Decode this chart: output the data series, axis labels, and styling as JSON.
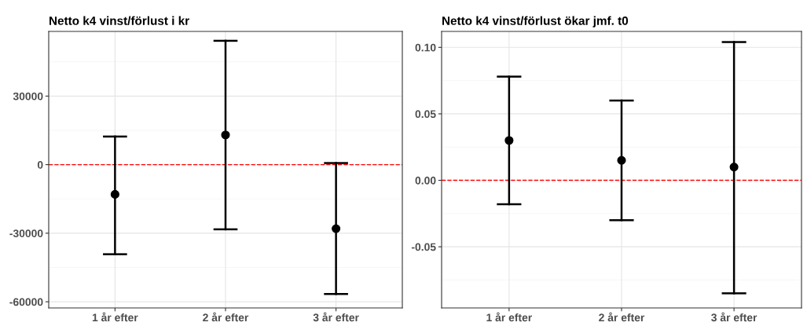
{
  "chart_data": [
    {
      "type": "scatter",
      "title": "Netto k4 vinst/förlust i kr",
      "categories": [
        "1 år efter",
        "2 år efter",
        "3 år efter"
      ],
      "series": [
        {
          "color": "#000000",
          "values": [
            -13000,
            13000,
            -28000
          ],
          "errors": [
            [
              -39200,
              12300
            ],
            [
              -28300,
              54200
            ],
            [
              -56600,
              700
            ]
          ]
        }
      ],
      "ylim": [
        -62700,
        58300
      ],
      "yticks": [
        -60000,
        -30000,
        0,
        30000
      ],
      "grid": true,
      "marker": "circle",
      "ref_lines": [
        {
          "axis": "y",
          "value": 0,
          "color": "#ff0000",
          "line_style": "dashed"
        }
      ]
    },
    {
      "type": "scatter",
      "title": "Netto k4 vinst/förlust ökar jmf. t0",
      "categories": [
        "1 år efter",
        "2 år efter",
        "3 år efter"
      ],
      "series": [
        {
          "color": "#000000",
          "values": [
            0.03,
            0.015,
            0.01
          ],
          "errors": [
            [
              -0.018,
              0.078
            ],
            [
              -0.03,
              0.06
            ],
            [
              -0.085,
              0.104
            ]
          ]
        }
      ],
      "ylim": [
        -0.096,
        0.112
      ],
      "yticks": [
        {
          "value": -0.05,
          "label": "-0.05"
        },
        {
          "value": 0,
          "label": "0.00"
        },
        {
          "value": 0.05,
          "label": "0.05"
        },
        {
          "value": 0.1,
          "label": "0.10"
        }
      ],
      "grid": true,
      "marker": "circle",
      "ref_lines": [
        {
          "axis": "y",
          "value": 0,
          "color": "#ff0000",
          "line_style": "dashed"
        }
      ]
    }
  ]
}
